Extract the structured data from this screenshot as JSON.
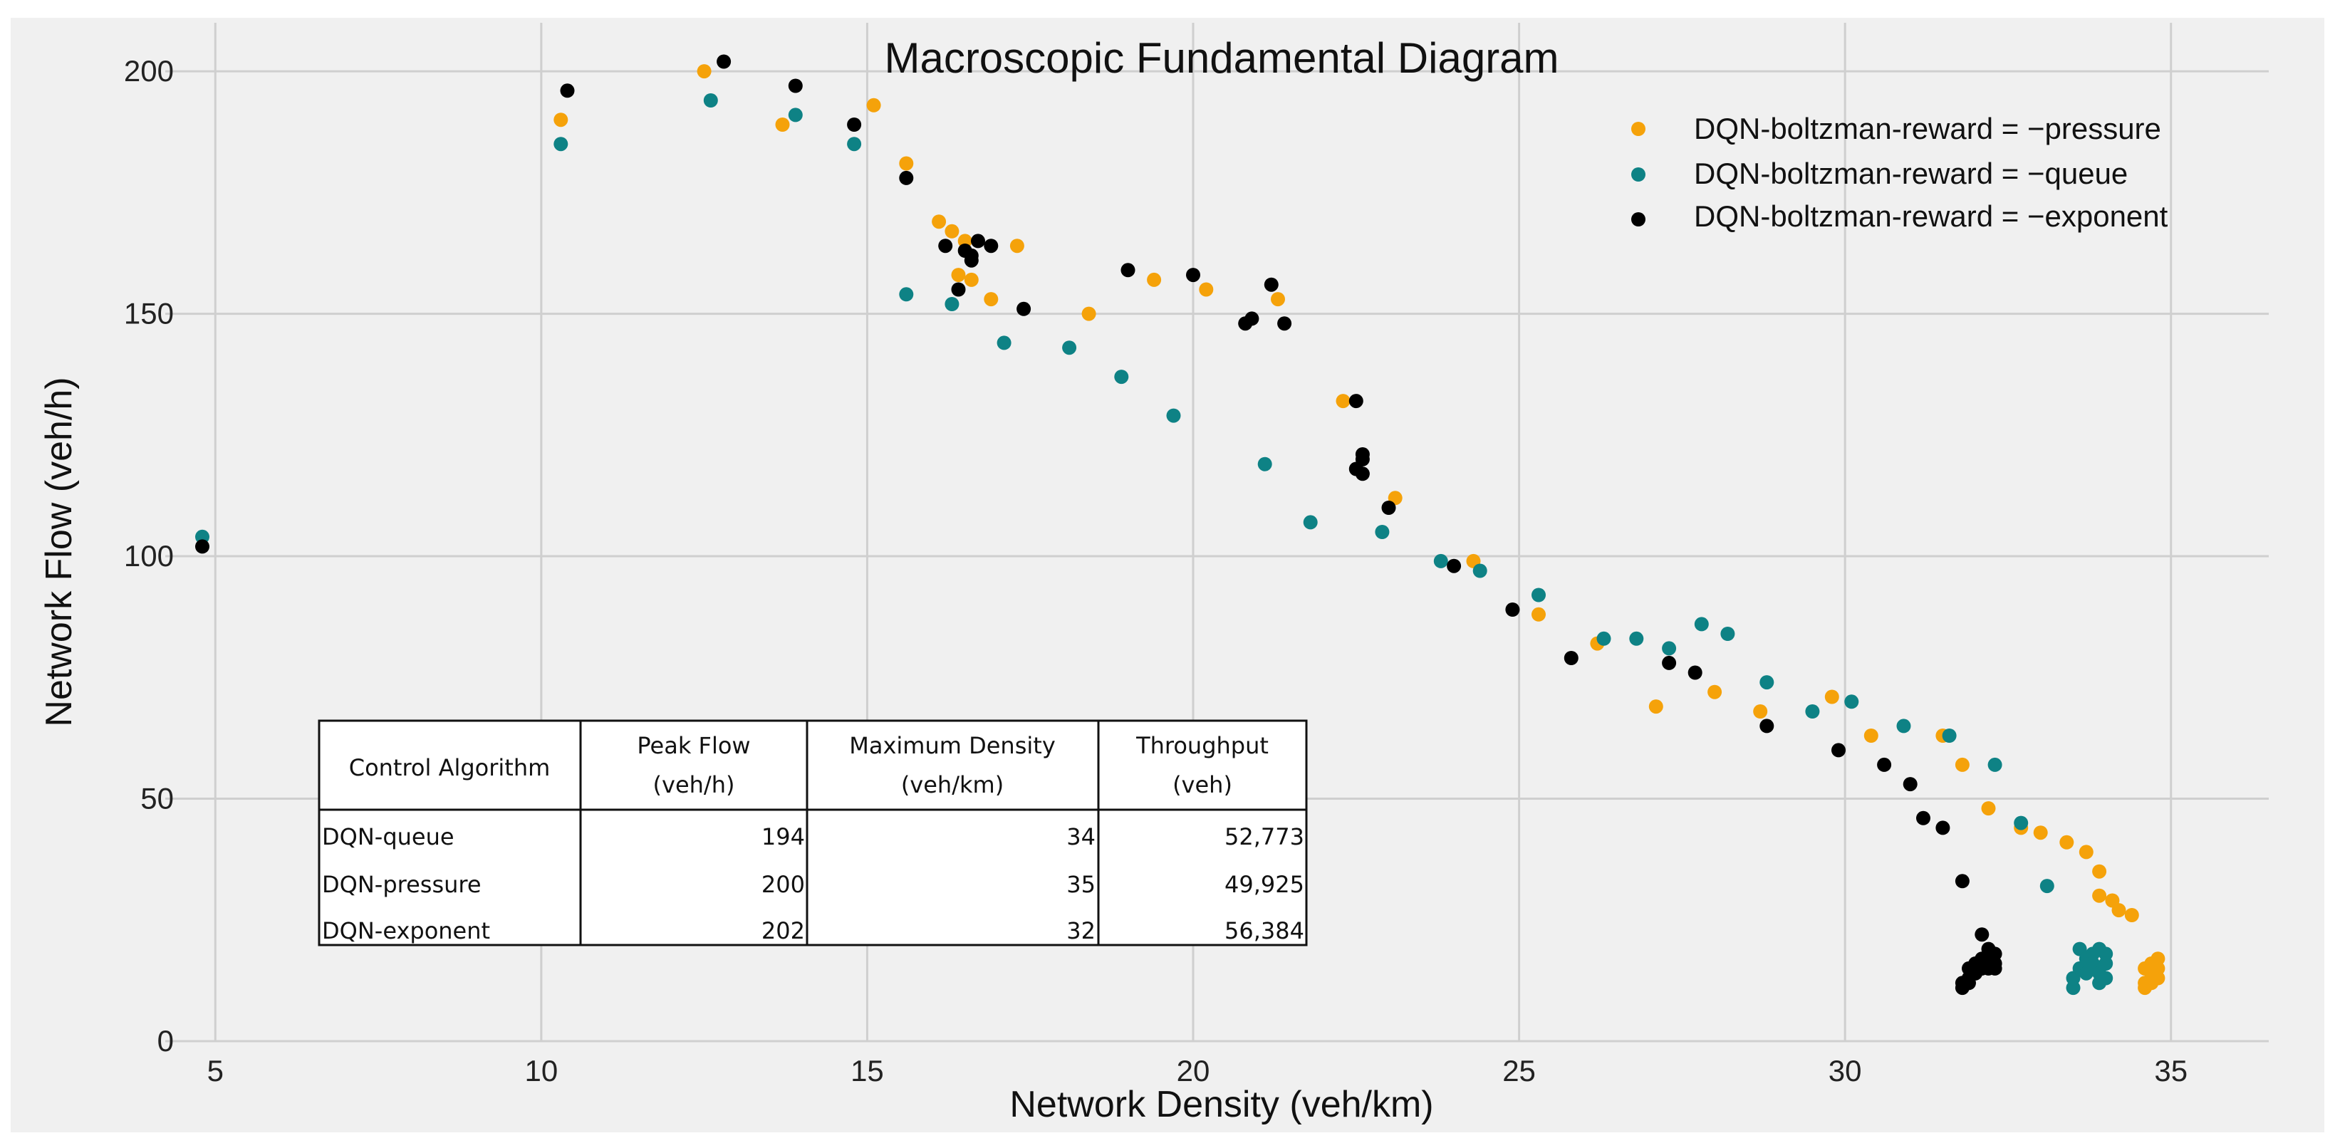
{
  "chart_data": {
    "type": "scatter",
    "title": "Macroscopic Fundamental Diagram",
    "xlabel": "Network Density (veh/km)",
    "ylabel": "Network Flow (veh/h)",
    "xlim": [
      3.5,
      36.5
    ],
    "ylim": [
      0,
      210
    ],
    "xticks": [
      5,
      10,
      15,
      20,
      25,
      30,
      35
    ],
    "yticks": [
      0,
      50,
      100,
      150,
      200
    ],
    "grid": true,
    "legend_position": "top-right",
    "series": [
      {
        "name": "DQN-boltzman-reward = −pressure",
        "color": "#f5a20a",
        "points": [
          [
            10.3,
            190
          ],
          [
            12.5,
            200
          ],
          [
            13.7,
            189
          ],
          [
            15.1,
            193
          ],
          [
            15.6,
            181
          ],
          [
            16.1,
            169
          ],
          [
            16.3,
            167
          ],
          [
            16.5,
            165
          ],
          [
            16.4,
            158
          ],
          [
            16.6,
            157
          ],
          [
            16.9,
            153
          ],
          [
            17.3,
            164
          ],
          [
            18.4,
            150
          ],
          [
            19.4,
            157
          ],
          [
            20.2,
            155
          ],
          [
            21.3,
            153
          ],
          [
            22.3,
            132
          ],
          [
            23.1,
            112
          ],
          [
            24.3,
            99
          ],
          [
            25.3,
            88
          ],
          [
            26.2,
            82
          ],
          [
            27.1,
            69
          ],
          [
            28.0,
            72
          ],
          [
            28.7,
            68
          ],
          [
            29.8,
            71
          ],
          [
            30.4,
            63
          ],
          [
            31.5,
            63
          ],
          [
            31.8,
            57
          ],
          [
            32.2,
            48
          ],
          [
            32.7,
            44
          ],
          [
            33.0,
            43
          ],
          [
            33.4,
            41
          ],
          [
            33.7,
            39
          ],
          [
            33.9,
            35
          ],
          [
            33.9,
            30
          ],
          [
            34.1,
            29
          ],
          [
            34.2,
            27
          ],
          [
            34.4,
            26
          ],
          [
            34.6,
            15
          ],
          [
            34.7,
            16
          ],
          [
            34.7,
            14
          ],
          [
            34.8,
            17
          ],
          [
            34.8,
            13
          ],
          [
            34.6,
            11
          ],
          [
            34.7,
            12
          ],
          [
            34.8,
            15
          ],
          [
            34.7,
            13
          ],
          [
            34.6,
            12
          ]
        ]
      },
      {
        "name": "DQN-boltzman-reward = −queue",
        "color": "#0e8285",
        "points": [
          [
            4.8,
            104
          ],
          [
            10.3,
            185
          ],
          [
            12.6,
            194
          ],
          [
            13.9,
            191
          ],
          [
            14.8,
            185
          ],
          [
            15.6,
            154
          ],
          [
            16.3,
            152
          ],
          [
            17.1,
            144
          ],
          [
            18.1,
            143
          ],
          [
            18.9,
            137
          ],
          [
            19.7,
            129
          ],
          [
            21.1,
            119
          ],
          [
            21.8,
            107
          ],
          [
            22.9,
            105
          ],
          [
            23.8,
            99
          ],
          [
            24.4,
            97
          ],
          [
            25.3,
            92
          ],
          [
            26.3,
            83
          ],
          [
            26.8,
            83
          ],
          [
            27.3,
            81
          ],
          [
            27.8,
            86
          ],
          [
            28.2,
            84
          ],
          [
            28.8,
            74
          ],
          [
            29.5,
            68
          ],
          [
            30.1,
            70
          ],
          [
            30.9,
            65
          ],
          [
            31.6,
            63
          ],
          [
            32.3,
            57
          ],
          [
            32.7,
            45
          ],
          [
            33.1,
            32
          ],
          [
            33.5,
            11
          ],
          [
            33.5,
            13
          ],
          [
            33.6,
            15
          ],
          [
            33.6,
            19
          ],
          [
            33.7,
            17
          ],
          [
            33.7,
            14
          ],
          [
            33.8,
            18
          ],
          [
            33.8,
            16
          ],
          [
            33.9,
            19
          ],
          [
            33.9,
            14
          ],
          [
            34.0,
            18
          ],
          [
            34.0,
            16
          ],
          [
            33.9,
            12
          ],
          [
            34.0,
            13
          ]
        ]
      },
      {
        "name": "DQN-boltzman-reward = −exponent",
        "color": "#000000",
        "points": [
          [
            4.8,
            102
          ],
          [
            10.4,
            196
          ],
          [
            12.8,
            202
          ],
          [
            13.9,
            197
          ],
          [
            14.8,
            189
          ],
          [
            15.6,
            178
          ],
          [
            16.2,
            164
          ],
          [
            16.4,
            155
          ],
          [
            16.5,
            163
          ],
          [
            16.6,
            162
          ],
          [
            16.6,
            161
          ],
          [
            16.7,
            165
          ],
          [
            16.9,
            164
          ],
          [
            17.4,
            151
          ],
          [
            19.0,
            159
          ],
          [
            20.0,
            158
          ],
          [
            20.8,
            148
          ],
          [
            20.9,
            149
          ],
          [
            21.2,
            156
          ],
          [
            21.4,
            148
          ],
          [
            22.5,
            132
          ],
          [
            22.6,
            121
          ],
          [
            22.6,
            120
          ],
          [
            22.5,
            118
          ],
          [
            22.6,
            117
          ],
          [
            23.0,
            110
          ],
          [
            24.0,
            98
          ],
          [
            24.9,
            89
          ],
          [
            25.8,
            79
          ],
          [
            27.3,
            78
          ],
          [
            27.7,
            76
          ],
          [
            28.8,
            65
          ],
          [
            29.9,
            60
          ],
          [
            30.6,
            57
          ],
          [
            31.0,
            53
          ],
          [
            31.2,
            46
          ],
          [
            31.5,
            44
          ],
          [
            31.8,
            33
          ],
          [
            31.8,
            11
          ],
          [
            31.8,
            12
          ],
          [
            31.9,
            13
          ],
          [
            31.9,
            15
          ],
          [
            32.0,
            14
          ],
          [
            32.0,
            16
          ],
          [
            32.1,
            17
          ],
          [
            32.1,
            15
          ],
          [
            32.1,
            22
          ],
          [
            32.2,
            19
          ],
          [
            32.2,
            17
          ],
          [
            32.3,
            16
          ],
          [
            32.3,
            18
          ],
          [
            32.2,
            15
          ],
          [
            31.9,
            12
          ],
          [
            32.3,
            15
          ]
        ]
      }
    ],
    "table": {
      "headers": [
        [
          "Control Algorithm"
        ],
        [
          "Peak Flow",
          "(veh/h)"
        ],
        [
          "Maximum Density",
          "(veh/km)"
        ],
        [
          "Throughput",
          "(veh)"
        ]
      ],
      "rows": [
        [
          "DQN-queue",
          "194",
          "34",
          "52,773"
        ],
        [
          "DQN-pressure",
          "200",
          "35",
          "49,925"
        ],
        [
          "DQN-exponent",
          "202",
          "32",
          "56,384"
        ]
      ]
    }
  }
}
